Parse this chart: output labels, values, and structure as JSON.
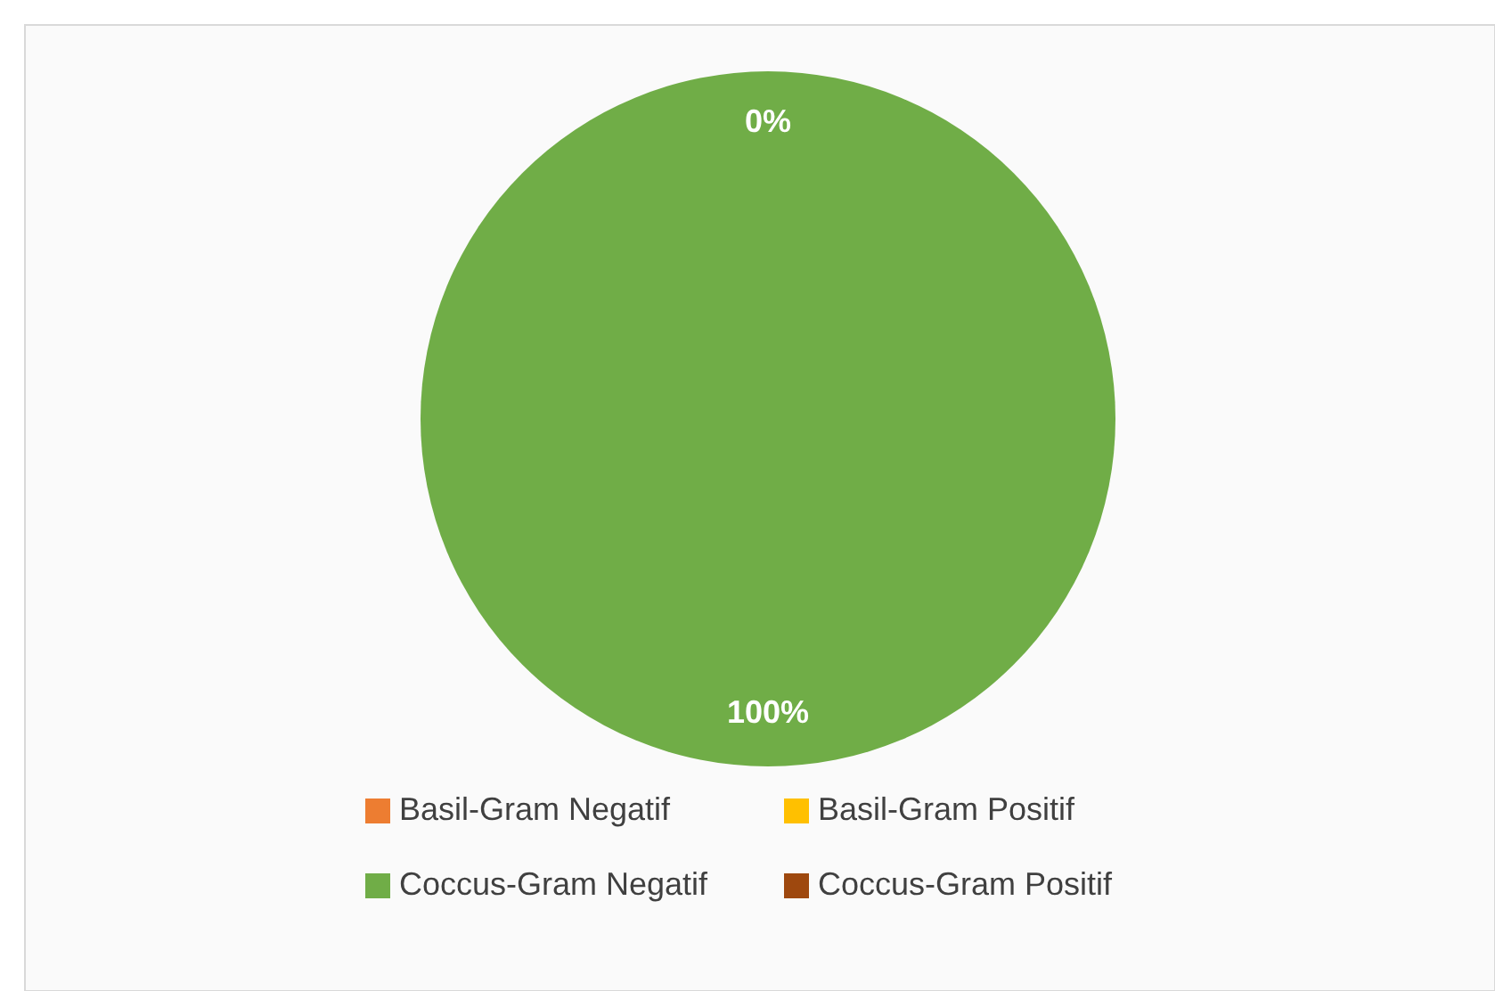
{
  "chart_data": {
    "type": "pie",
    "categories": [
      "Basil-Gram Negatif",
      "Basil-Gram Positif",
      "Coccus-Gram Negatif",
      "Coccus-Gram Positif"
    ],
    "values": [
      0,
      0,
      100,
      0
    ],
    "colors": [
      "#ed7d31",
      "#ffc000",
      "#70ad47",
      "#9e480e"
    ],
    "value_labels": [
      "0%",
      null,
      "100%",
      null
    ],
    "legend": "bottom"
  }
}
